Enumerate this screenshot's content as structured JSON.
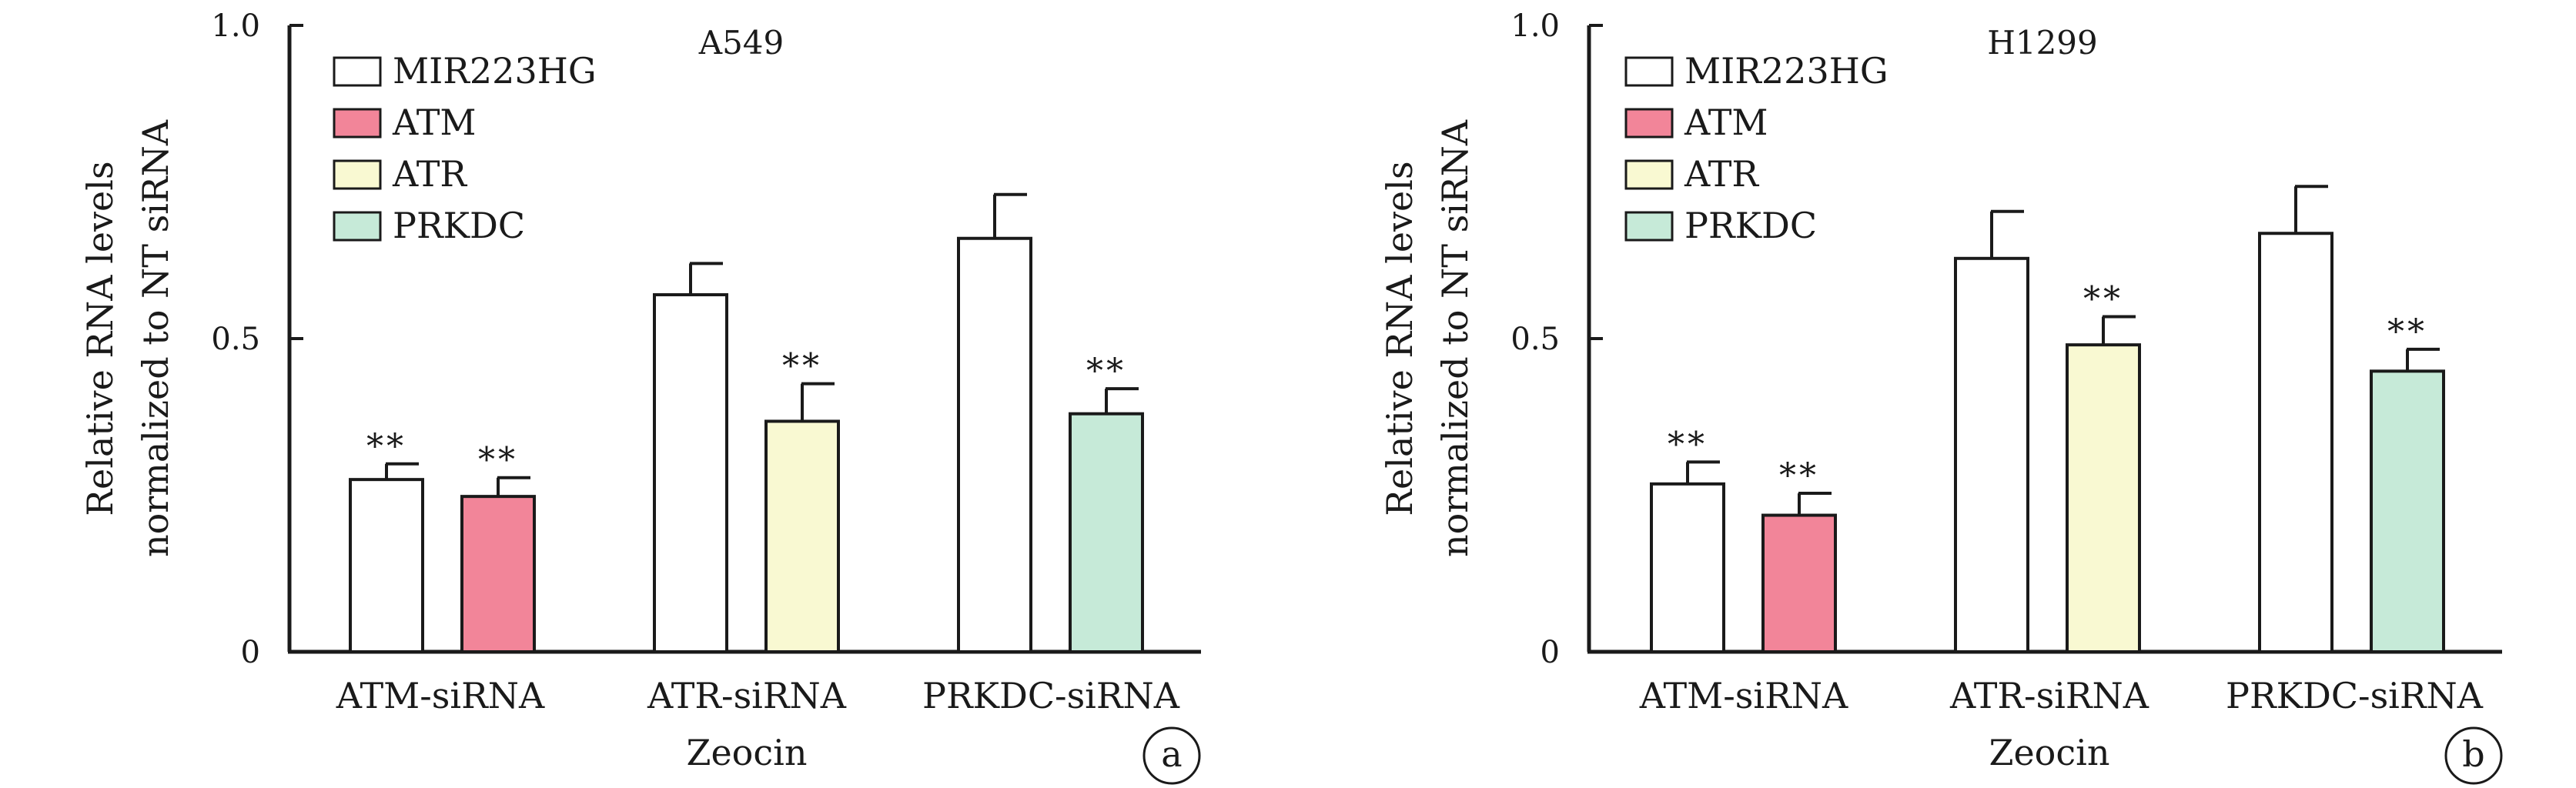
{
  "legend": [
    {
      "name": "MIR223HG",
      "color": "#ffffff"
    },
    {
      "name": "ATM",
      "color": "#f28599"
    },
    {
      "name": "ATR",
      "color": "#f9f9d2"
    },
    {
      "name": "PRKDC",
      "color": "#c6ead8"
    }
  ],
  "chart_data": [
    {
      "type": "bar",
      "title": "A549",
      "panel_label": "a",
      "ylabel_lines": [
        "Relative RNA levels",
        "normalized to NT siRNA"
      ],
      "xlabel": "Zeocin",
      "ylim": [
        0,
        1.0
      ],
      "yticks": [
        "0",
        "0.5",
        "1.0"
      ],
      "categories": [
        "ATM-siRNA",
        "ATR-siRNA",
        "PRKDC-siRNA"
      ],
      "bars": [
        {
          "category": "ATM-siRNA",
          "series": "MIR223HG",
          "value": 0.275,
          "error": 0.025,
          "sig": "**"
        },
        {
          "category": "ATM-siRNA",
          "series": "ATM",
          "value": 0.248,
          "error": 0.03,
          "sig": "**"
        },
        {
          "category": "ATR-siRNA",
          "series": "MIR223HG",
          "value": 0.57,
          "error": 0.05,
          "sig": ""
        },
        {
          "category": "ATR-siRNA",
          "series": "ATR",
          "value": 0.368,
          "error": 0.06,
          "sig": "**"
        },
        {
          "category": "PRKDC-siRNA",
          "series": "MIR223HG",
          "value": 0.66,
          "error": 0.07,
          "sig": ""
        },
        {
          "category": "PRKDC-siRNA",
          "series": "PRKDC",
          "value": 0.38,
          "error": 0.04,
          "sig": "**"
        }
      ]
    },
    {
      "type": "bar",
      "title": "H1299",
      "panel_label": "b",
      "ylabel_lines": [
        "Relative RNA levels",
        "normalized to NT siRNA"
      ],
      "xlabel": "Zeocin",
      "ylim": [
        0,
        1.0
      ],
      "yticks": [
        "0",
        "0.5",
        "1.0"
      ],
      "categories": [
        "ATM-siRNA",
        "ATR-siRNA",
        "PRKDC-siRNA"
      ],
      "bars": [
        {
          "category": "ATM-siRNA",
          "series": "MIR223HG",
          "value": 0.268,
          "error": 0.035,
          "sig": "**"
        },
        {
          "category": "ATM-siRNA",
          "series": "ATM",
          "value": 0.218,
          "error": 0.035,
          "sig": "**"
        },
        {
          "category": "ATR-siRNA",
          "series": "MIR223HG",
          "value": 0.628,
          "error": 0.075,
          "sig": ""
        },
        {
          "category": "ATR-siRNA",
          "series": "ATR",
          "value": 0.49,
          "error": 0.045,
          "sig": "**"
        },
        {
          "category": "PRKDC-siRNA",
          "series": "MIR223HG",
          "value": 0.668,
          "error": 0.075,
          "sig": ""
        },
        {
          "category": "PRKDC-siRNA",
          "series": "PRKDC",
          "value": 0.448,
          "error": 0.035,
          "sig": "**"
        }
      ]
    }
  ]
}
